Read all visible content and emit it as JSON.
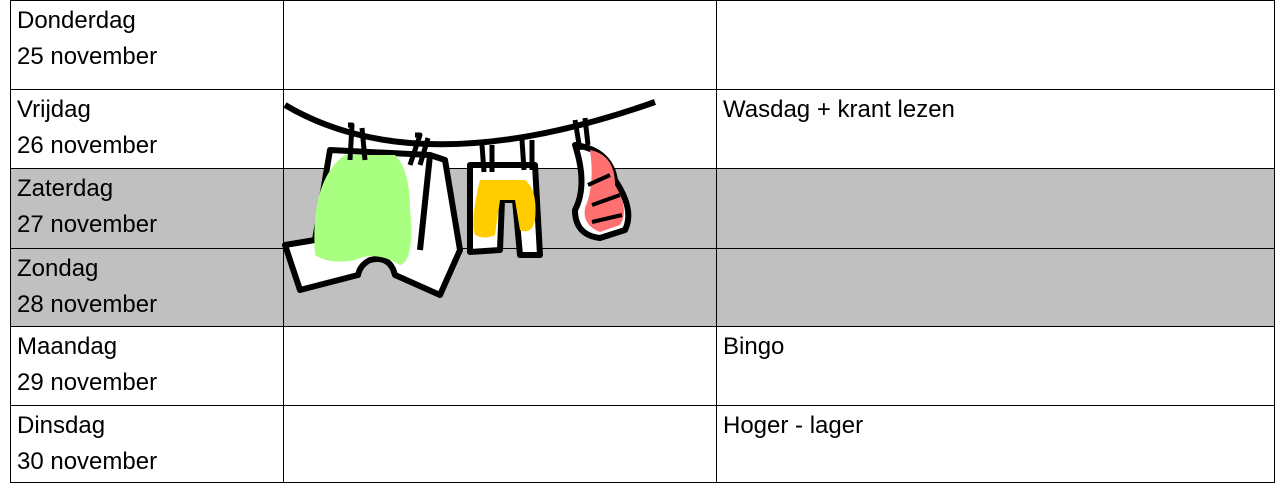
{
  "table": {
    "rows": [
      {
        "day": "Donderdag",
        "date": "25 november"
      },
      {
        "day": "Vrijdag",
        "date": "26 november",
        "activity": "Wasdag + krant lezen"
      },
      {
        "day": "Zaterdag",
        "date": "27 november",
        "shaded": true
      },
      {
        "day": "Zondag",
        "date": "28 november",
        "shaded": true
      },
      {
        "day": "Maandag",
        "date": "29 november",
        "activity": "Bingo"
      },
      {
        "day": "Dinsdag",
        "date": "30 november",
        "activity": "Hoger - lager"
      }
    ]
  }
}
